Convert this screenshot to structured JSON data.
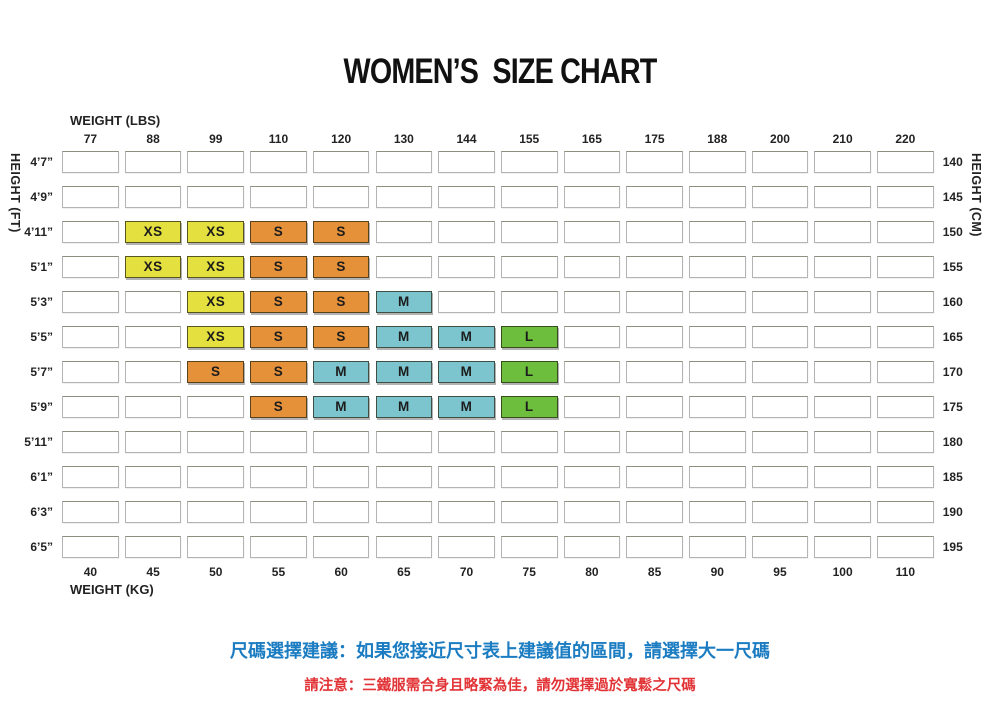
{
  "title": "WOMEN’S  SIZE CHART",
  "axes": {
    "top_label": "WEIGHT (LBS)",
    "bottom_label": "WEIGHT (KG)",
    "left_label": "HEIGHT (FT)",
    "right_label": "HEIGHT (CM)"
  },
  "chart_data": {
    "type": "heatmap",
    "title": "WOMEN’S SIZE CHART",
    "xlabel_top": "WEIGHT (LBS)",
    "xlabel_bottom": "WEIGHT (KG)",
    "ylabel_left": "HEIGHT (FT)",
    "ylabel_right": "HEIGHT (CM)",
    "x_categories_lbs": [
      "77",
      "88",
      "99",
      "110",
      "120",
      "130",
      "144",
      "155",
      "165",
      "175",
      "188",
      "200",
      "210",
      "220"
    ],
    "x_categories_kg": [
      "40",
      "45",
      "50",
      "55",
      "60",
      "65",
      "70",
      "75",
      "80",
      "85",
      "90",
      "95",
      "100",
      "110"
    ],
    "y_categories_ft": [
      "4’7”",
      "4’9”",
      "4’11”",
      "5’1”",
      "5’3”",
      "5’5”",
      "5’7”",
      "5’9”",
      "5’11”",
      "6’1”",
      "6’3”",
      "6’5”"
    ],
    "y_categories_cm": [
      "140",
      "145",
      "150",
      "155",
      "160",
      "165",
      "170",
      "175",
      "180",
      "185",
      "190",
      "195"
    ],
    "cells": [
      [
        "",
        "",
        "",
        "",
        "",
        "",
        "",
        "",
        "",
        "",
        "",
        "",
        "",
        ""
      ],
      [
        "",
        "",
        "",
        "",
        "",
        "",
        "",
        "",
        "",
        "",
        "",
        "",
        "",
        ""
      ],
      [
        "",
        "XS",
        "XS",
        "S",
        "S",
        "",
        "",
        "",
        "",
        "",
        "",
        "",
        "",
        ""
      ],
      [
        "",
        "XS",
        "XS",
        "S",
        "S",
        "",
        "",
        "",
        "",
        "",
        "",
        "",
        "",
        ""
      ],
      [
        "",
        "",
        "XS",
        "S",
        "S",
        "M",
        "",
        "",
        "",
        "",
        "",
        "",
        "",
        ""
      ],
      [
        "",
        "",
        "XS",
        "S",
        "S",
        "M",
        "M",
        "L",
        "",
        "",
        "",
        "",
        "",
        ""
      ],
      [
        "",
        "",
        "S",
        "S",
        "M",
        "M",
        "M",
        "L",
        "",
        "",
        "",
        "",
        "",
        ""
      ],
      [
        "",
        "",
        "",
        "S",
        "M",
        "M",
        "M",
        "L",
        "",
        "",
        "",
        "",
        "",
        ""
      ],
      [
        "",
        "",
        "",
        "",
        "",
        "",
        "",
        "",
        "",
        "",
        "",
        "",
        "",
        ""
      ],
      [
        "",
        "",
        "",
        "",
        "",
        "",
        "",
        "",
        "",
        "",
        "",
        "",
        "",
        ""
      ],
      [
        "",
        "",
        "",
        "",
        "",
        "",
        "",
        "",
        "",
        "",
        "",
        "",
        "",
        ""
      ],
      [
        "",
        "",
        "",
        "",
        "",
        "",
        "",
        "",
        "",
        "",
        "",
        "",
        "",
        ""
      ]
    ],
    "legend_colors": {
      "XS": "#e4e03f",
      "S": "#e5913a",
      "M": "#7cc5ce",
      "L": "#6cbe3c"
    }
  },
  "notes": {
    "advice": "尺碼選擇建議：如果您接近尺寸表上建議值的區間，請選擇大一尺碼",
    "advice_color": "#1b7cc2",
    "warning": "請注意：三鐵服需合身且略緊為佳，請勿選擇過於寬鬆之尺碼",
    "warning_color": "#e23437"
  }
}
